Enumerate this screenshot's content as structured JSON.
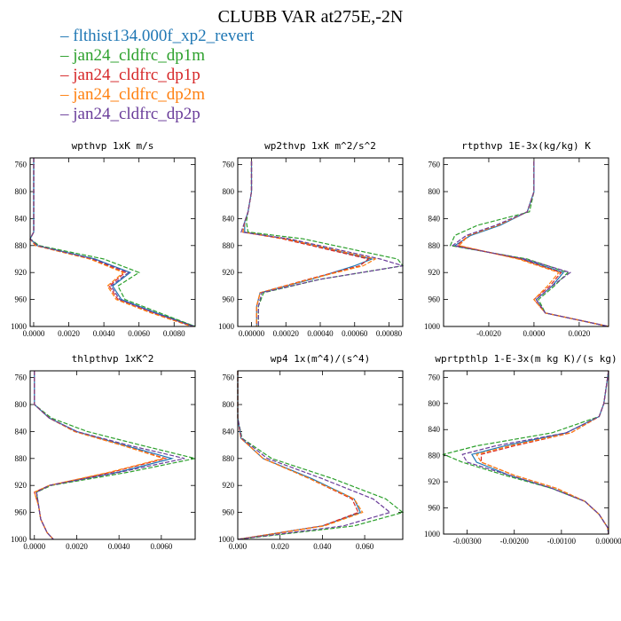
{
  "title": "CLUBB VAR at275E,-2N",
  "legend": [
    {
      "label": "flthist134.000f_xp2_revert",
      "color": "#1f77b4"
    },
    {
      "label": "jan24_cldfrc_dp1m",
      "color": "#2ca02c"
    },
    {
      "label": "jan24_cldfrc_dp1p",
      "color": "#d62728"
    },
    {
      "label": "jan24_cldfrc_dp2m",
      "color": "#ff7f0e"
    },
    {
      "label": "jan24_cldfrc_dp2p",
      "color": "#6a3d9a"
    }
  ],
  "chart_data": [
    {
      "type": "line",
      "title": "wpthvp  1xK m/s",
      "xlim": [
        -0.0002,
        0.0092
      ],
      "ylim": [
        1000,
        750
      ],
      "xticks": [
        0.0,
        0.002,
        0.004,
        0.006,
        0.008
      ],
      "xticklabels": [
        "0.0000",
        "0.0020",
        "0.0040",
        "0.0060",
        "0.0080"
      ],
      "yticks": [
        760,
        800,
        840,
        880,
        920,
        960,
        1000
      ],
      "y": [
        750,
        800,
        840,
        860,
        870,
        880,
        900,
        920,
        940,
        960,
        980,
        1000
      ],
      "series": [
        {
          "values": [
            0.0,
            0.0,
            0.0,
            0.0,
            -0.0002,
            0.0002,
            0.0035,
            0.0055,
            0.0045,
            0.005,
            0.007,
            0.0092
          ]
        },
        {
          "values": [
            0.0,
            0.0,
            0.0,
            0.0,
            -0.0002,
            0.0003,
            0.004,
            0.006,
            0.0048,
            0.0052,
            0.0072,
            0.0092
          ]
        },
        {
          "values": [
            0.0,
            0.0,
            0.0,
            0.0,
            -0.0002,
            0.0001,
            0.0033,
            0.0052,
            0.0043,
            0.0048,
            0.0068,
            0.0091
          ]
        },
        {
          "values": [
            0.0,
            0.0,
            0.0,
            0.0,
            -0.0002,
            0.0001,
            0.0032,
            0.0051,
            0.0042,
            0.0047,
            0.0067,
            0.009
          ]
        },
        {
          "values": [
            0.0,
            0.0,
            0.0,
            0.0,
            -0.0002,
            0.0002,
            0.0034,
            0.0054,
            0.0044,
            0.0049,
            0.0069,
            0.0091
          ]
        }
      ]
    },
    {
      "type": "line",
      "title": "wp2thvp  1xK m^2/s^2",
      "xlim": [
        -8e-05,
        0.00088
      ],
      "ylim": [
        1000,
        750
      ],
      "xticks": [
        0.0,
        0.0002,
        0.0004,
        0.0006,
        0.0008
      ],
      "xticklabels": [
        "0.00000",
        "0.00020",
        "0.00040",
        "0.00060",
        "0.00080"
      ],
      "yticks": [
        760,
        800,
        840,
        880,
        920,
        960,
        1000
      ],
      "y": [
        755,
        800,
        830,
        845,
        860,
        870,
        900,
        910,
        930,
        950,
        970,
        1000
      ],
      "series": [
        {
          "values": [
            0.0,
            0.0,
            -2e-05,
            -4e-05,
            -4e-05,
            0.0002,
            0.0007,
            0.0006,
            0.00035,
            5e-05,
            3e-05,
            3e-05
          ]
        },
        {
          "values": [
            0.0,
            0.0,
            -2e-05,
            -3e-05,
            -2e-05,
            0.0003,
            0.00085,
            0.00088,
            0.0004,
            7e-05,
            4e-05,
            4e-05
          ]
        },
        {
          "values": [
            0.0,
            0.0,
            -2e-05,
            -4e-05,
            -5e-05,
            0.00018,
            0.00068,
            0.00063,
            0.00033,
            5e-05,
            3e-05,
            3e-05
          ]
        },
        {
          "values": [
            0.0,
            0.0,
            -2e-05,
            -4e-05,
            -5e-05,
            0.0002,
            0.00072,
            0.00065,
            0.00034,
            5e-05,
            3e-05,
            3e-05
          ]
        },
        {
          "values": [
            0.0,
            0.0,
            -2e-05,
            -4e-05,
            -6e-05,
            0.00022,
            0.00075,
            0.00088,
            0.0004,
            6e-05,
            4e-05,
            4e-05
          ]
        }
      ]
    },
    {
      "type": "line",
      "title": "rtpthvp  1E-3x(kg/kg) K",
      "xlim": [
        -0.004,
        0.0033
      ],
      "ylim": [
        1000,
        750
      ],
      "xticks": [
        -0.002,
        0.0,
        0.002
      ],
      "xticklabels": [
        "-0.0020",
        "0.0000",
        "0.0020"
      ],
      "yticks": [
        760,
        800,
        840,
        880,
        920,
        960,
        1000
      ],
      "y": [
        755,
        800,
        830,
        850,
        865,
        880,
        900,
        920,
        940,
        960,
        980,
        1000
      ],
      "series": [
        {
          "values": [
            0.0,
            0.0,
            -0.0003,
            -0.0015,
            -0.0028,
            -0.0035,
            -0.0005,
            0.0013,
            0.0008,
            0.0001,
            0.0005,
            0.0033
          ]
        },
        {
          "values": [
            0.0,
            0.0,
            -0.0002,
            -0.0025,
            -0.0035,
            -0.0037,
            -0.0003,
            0.0015,
            0.0009,
            0.0002,
            0.0005,
            0.0033
          ]
        },
        {
          "values": [
            0.0,
            0.0,
            -0.0003,
            -0.0016,
            -0.0029,
            -0.0034,
            -0.0006,
            0.0012,
            0.0007,
            0.0,
            0.0005,
            0.0033
          ]
        },
        {
          "values": [
            0.0,
            0.0,
            -0.0003,
            -0.0016,
            -0.0029,
            -0.0033,
            -0.0007,
            0.0011,
            0.0006,
            0.0,
            0.0005,
            0.0033
          ]
        },
        {
          "values": [
            0.0,
            0.0,
            -0.0003,
            -0.0017,
            -0.003,
            -0.0036,
            -0.0004,
            0.0016,
            0.0008,
            0.0001,
            0.0005,
            0.0033
          ]
        }
      ]
    },
    {
      "type": "line",
      "title": "thlpthvp  1xK^2",
      "xlim": [
        -0.0002,
        0.0076
      ],
      "ylim": [
        1000,
        750
      ],
      "xticks": [
        0.0,
        0.002,
        0.004,
        0.006
      ],
      "xticklabels": [
        "0.0000",
        "0.0020",
        "0.0040",
        "0.0060"
      ],
      "yticks": [
        760,
        800,
        840,
        880,
        920,
        960,
        1000
      ],
      "y": [
        750,
        800,
        820,
        840,
        860,
        880,
        900,
        920,
        930,
        950,
        970,
        990,
        1000
      ],
      "series": [
        {
          "values": [
            0.0,
            0.0,
            0.0007,
            0.002,
            0.0042,
            0.0065,
            0.004,
            0.0007,
            0.0001,
            0.0002,
            0.0003,
            0.0006,
            0.0009
          ]
        },
        {
          "values": [
            0.0,
            0.0,
            0.0008,
            0.0025,
            0.005,
            0.0076,
            0.0045,
            0.0008,
            0.0001,
            0.0002,
            0.0003,
            0.0006,
            0.0009
          ]
        },
        {
          "values": [
            0.0,
            0.0,
            0.0007,
            0.0019,
            0.0041,
            0.0062,
            0.0037,
            0.0007,
            0.0,
            0.0002,
            0.0003,
            0.0006,
            0.0009
          ]
        },
        {
          "values": [
            0.0,
            0.0,
            0.0007,
            0.0019,
            0.0041,
            0.0061,
            0.0036,
            0.0007,
            0.0,
            0.0002,
            0.0003,
            0.0006,
            0.0009
          ]
        },
        {
          "values": [
            0.0,
            0.0,
            0.0007,
            0.002,
            0.0044,
            0.0071,
            0.0041,
            0.0007,
            0.0001,
            0.0002,
            0.0003,
            0.0006,
            0.0009
          ]
        }
      ]
    },
    {
      "type": "line",
      "title": "wp4  1x(m^4)/(s^4)",
      "xlim": [
        0.0,
        0.078
      ],
      "ylim": [
        1000,
        750
      ],
      "xticks": [
        0.0,
        0.02,
        0.04,
        0.06
      ],
      "xticklabels": [
        "0.000",
        "0.020",
        "0.040",
        "0.060"
      ],
      "yticks": [
        760,
        800,
        840,
        880,
        920,
        960,
        1000
      ],
      "y": [
        750,
        820,
        850,
        880,
        910,
        940,
        960,
        980,
        1000
      ],
      "series": [
        {
          "values": [
            0.0,
            0.0,
            0.0015,
            0.012,
            0.035,
            0.055,
            0.058,
            0.04,
            0.0
          ]
        },
        {
          "values": [
            0.0,
            0.0,
            0.002,
            0.016,
            0.045,
            0.07,
            0.078,
            0.055,
            0.0
          ]
        },
        {
          "values": [
            0.0,
            0.0,
            0.0015,
            0.012,
            0.034,
            0.054,
            0.057,
            0.04,
            0.0
          ]
        },
        {
          "values": [
            0.0,
            0.0,
            0.0015,
            0.012,
            0.034,
            0.055,
            0.059,
            0.041,
            0.0
          ]
        },
        {
          "values": [
            0.0,
            0.0,
            0.0018,
            0.014,
            0.04,
            0.064,
            0.072,
            0.05,
            0.0
          ]
        }
      ]
    },
    {
      "type": "line",
      "title": "wprtpthlp  1-E-3x(m kg K)/(s kg)",
      "xlim": [
        -0.0035,
        0.0
      ],
      "ylim": [
        1000,
        750
      ],
      "xticks": [
        -0.003,
        -0.002,
        -0.001,
        0.0
      ],
      "xticklabels": [
        "-0.00300",
        "-0.00200",
        "-0.00100",
        "0.00000"
      ],
      "yticks": [
        760,
        800,
        840,
        880,
        920,
        960,
        1000
      ],
      "y": [
        750,
        800,
        820,
        845,
        865,
        878,
        890,
        910,
        930,
        950,
        970,
        990,
        1000
      ],
      "series": [
        {
          "values": [
            0.0,
            -0.0001,
            -0.0002,
            -0.0009,
            -0.0022,
            -0.0029,
            -0.0028,
            -0.0021,
            -0.0012,
            -0.0005,
            -0.0002,
            -2e-05,
            0.0
          ]
        },
        {
          "values": [
            0.0,
            -0.0001,
            -0.0002,
            -0.0012,
            -0.0028,
            -0.0035,
            -0.0031,
            -0.0022,
            -0.0012,
            -0.0005,
            -0.0002,
            -2e-05,
            0.0
          ]
        },
        {
          "values": [
            0.0,
            -0.0001,
            -0.0002,
            -0.0008,
            -0.002,
            -0.0027,
            -0.0027,
            -0.002,
            -0.0011,
            -0.0005,
            -0.0002,
            -2e-05,
            0.0
          ]
        },
        {
          "values": [
            0.0,
            -0.0001,
            -0.0002,
            -0.0008,
            -0.0021,
            -0.0028,
            -0.0027,
            -0.002,
            -0.0011,
            -0.0005,
            -0.0002,
            -2e-05,
            0.0
          ]
        },
        {
          "values": [
            0.0,
            -0.0001,
            -0.0002,
            -0.0009,
            -0.0024,
            -0.0031,
            -0.003,
            -0.0021,
            -0.0012,
            -0.0005,
            -0.0002,
            -2e-05,
            0.0
          ]
        }
      ]
    }
  ]
}
